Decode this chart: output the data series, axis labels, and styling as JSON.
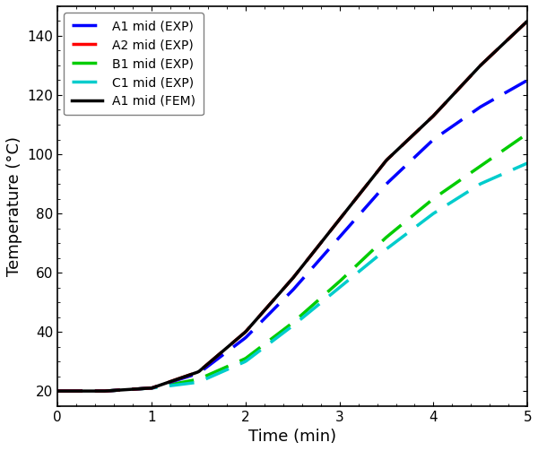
{
  "title": "",
  "xlabel": "Time (min)",
  "ylabel": "Temperature (°C)",
  "xlim": [
    0,
    5
  ],
  "ylim": [
    15,
    150
  ],
  "yticks": [
    20,
    40,
    60,
    80,
    100,
    120,
    140
  ],
  "xticks": [
    0,
    1,
    2,
    3,
    4,
    5
  ],
  "series": [
    {
      "label": "A1 mid (EXP)",
      "color": "#0000ff",
      "linestyle": "--",
      "linewidth": 2.5,
      "curve_key": "A1"
    },
    {
      "label": "A2 mid (EXP)",
      "color": "#ff0000",
      "linestyle": "--",
      "linewidth": 2.5,
      "curve_key": "A2_FEM"
    },
    {
      "label": "B1 mid (EXP)",
      "color": "#00cc00",
      "linestyle": "--",
      "linewidth": 2.5,
      "curve_key": "B1"
    },
    {
      "label": "C1 mid (EXP)",
      "color": "#00cccc",
      "linestyle": "--",
      "linewidth": 2.5,
      "curve_key": "C1"
    },
    {
      "label": "A1 mid (FEM)",
      "color": "#000000",
      "linestyle": "-",
      "linewidth": 2.5,
      "curve_key": "A2_FEM"
    }
  ],
  "key_data": {
    "A2_FEM": [
      [
        0,
        20
      ],
      [
        0.5,
        20.0
      ],
      [
        1.0,
        21.0
      ],
      [
        1.5,
        26.5
      ],
      [
        2.0,
        40.0
      ],
      [
        2.5,
        58.0
      ],
      [
        3.0,
        78.0
      ],
      [
        3.5,
        98.0
      ],
      [
        4.0,
        113.0
      ],
      [
        4.5,
        130.0
      ],
      [
        5.0,
        145.0
      ]
    ],
    "A1": [
      [
        0,
        20
      ],
      [
        0.5,
        20.0
      ],
      [
        1.0,
        21.0
      ],
      [
        1.5,
        26.0
      ],
      [
        2.0,
        38.0
      ],
      [
        2.5,
        54.0
      ],
      [
        3.0,
        72.0
      ],
      [
        3.5,
        90.0
      ],
      [
        4.0,
        105.0
      ],
      [
        4.5,
        116.0
      ],
      [
        5.0,
        125.0
      ]
    ],
    "B1": [
      [
        0,
        20
      ],
      [
        0.5,
        20.0
      ],
      [
        1.0,
        21.0
      ],
      [
        1.5,
        24.0
      ],
      [
        2.0,
        31.0
      ],
      [
        2.5,
        43.0
      ],
      [
        3.0,
        57.0
      ],
      [
        3.5,
        72.0
      ],
      [
        4.0,
        85.0
      ],
      [
        4.5,
        96.0
      ],
      [
        5.0,
        107.0
      ]
    ],
    "C1": [
      [
        0,
        20
      ],
      [
        0.5,
        20.0
      ],
      [
        1.0,
        21.0
      ],
      [
        1.5,
        23.0
      ],
      [
        2.0,
        30.0
      ],
      [
        2.5,
        42.0
      ],
      [
        3.0,
        55.0
      ],
      [
        3.5,
        68.0
      ],
      [
        4.0,
        80.0
      ],
      [
        4.5,
        90.0
      ],
      [
        5.0,
        97.0
      ]
    ]
  },
  "dash_pattern": [
    8,
    4
  ],
  "legend_loc": "upper left",
  "background_color": "#ffffff",
  "dpi": 100,
  "figsize": [
    6.0,
    5.03
  ]
}
